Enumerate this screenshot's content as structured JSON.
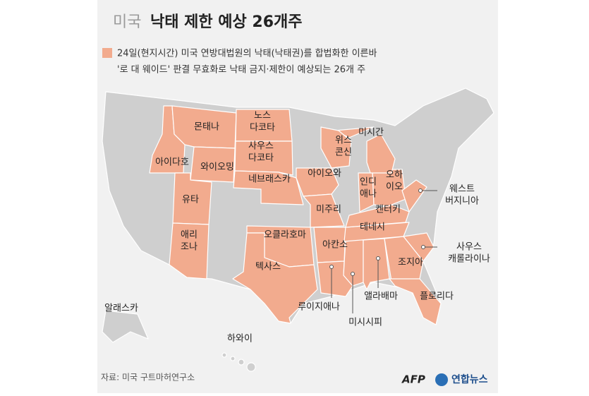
{
  "title": {
    "prefix": "미국",
    "main": "낙태 제한 예상 26개주"
  },
  "legend": {
    "lines": [
      "24일(현지시간) 미국 연방대법원의 낙태(낙태권)를 합법화한 이른바",
      "'로 대 웨이드' 판결 무효화로 낙태 금지·제한이 예상되는 26개 주"
    ]
  },
  "states": [
    {
      "lines": [
        "몬태나"
      ]
    },
    {
      "lines": [
        "노스",
        "다코타"
      ]
    },
    {
      "lines": [
        "아이다호"
      ]
    },
    {
      "lines": [
        "와이오밍"
      ]
    },
    {
      "lines": [
        "사우스",
        "다코타"
      ]
    },
    {
      "lines": [
        "네브래스카"
      ]
    },
    {
      "lines": [
        "아이오와"
      ]
    },
    {
      "lines": [
        "위스",
        "콘신"
      ]
    },
    {
      "lines": [
        "미시간"
      ]
    },
    {
      "lines": [
        "인디",
        "애나"
      ]
    },
    {
      "lines": [
        "오하",
        "이오"
      ]
    },
    {
      "lines": [
        "유타"
      ]
    },
    {
      "lines": [
        "미주리"
      ]
    },
    {
      "lines": [
        "켄터키"
      ]
    },
    {
      "lines": [
        "웨스트",
        "버지니아"
      ]
    },
    {
      "lines": [
        "애리",
        "조나"
      ]
    },
    {
      "lines": [
        "오클라호마"
      ]
    },
    {
      "lines": [
        "테네시"
      ]
    },
    {
      "lines": [
        "아칸소"
      ]
    },
    {
      "lines": [
        "사우스",
        "캐롤라이나"
      ]
    },
    {
      "lines": [
        "텍사스"
      ]
    },
    {
      "lines": [
        "조지아"
      ]
    },
    {
      "lines": [
        "앨라배마"
      ]
    },
    {
      "lines": [
        "루이지애나"
      ]
    },
    {
      "lines": [
        "미시시피"
      ]
    },
    {
      "lines": [
        "플로리다"
      ]
    }
  ],
  "other_labels": [
    "알래스카",
    "하와이"
  ],
  "source": "자료: 미국 구트마허연구소",
  "logos": [
    "AFP",
    "연합뉴스"
  ]
}
